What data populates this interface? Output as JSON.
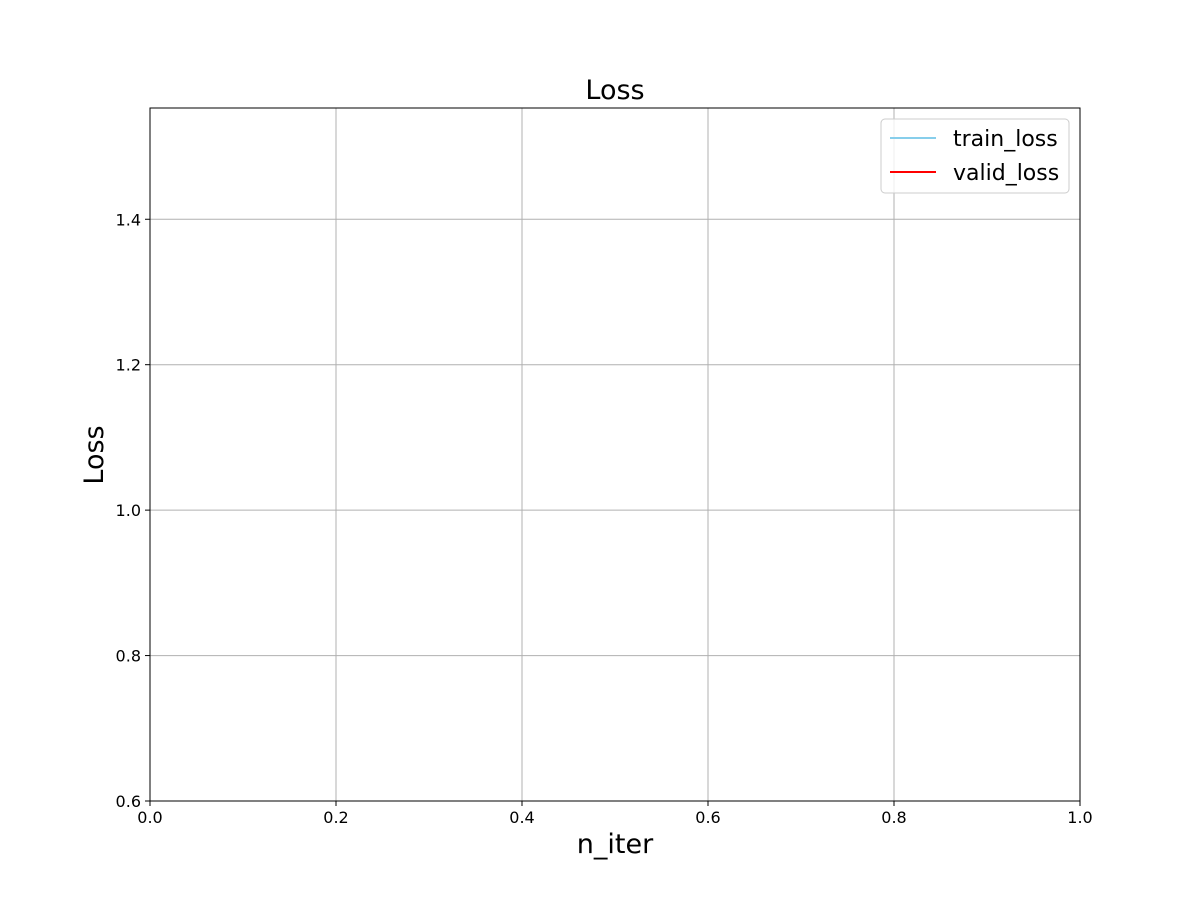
{
  "chart_data": {
    "type": "line",
    "title": "Loss",
    "xlabel": "n_iter",
    "ylabel": "Loss",
    "xlim": [
      0.0,
      1.0
    ],
    "ylim": [
      0.6,
      1.553
    ],
    "xticks": [
      0.0,
      0.2,
      0.4,
      0.6,
      0.8,
      1.0
    ],
    "xtick_labels": [
      "0.0",
      "0.2",
      "0.4",
      "0.6",
      "0.8",
      "1.0"
    ],
    "yticks": [
      0.6,
      0.8,
      1.0,
      1.2,
      1.4
    ],
    "ytick_labels": [
      "0.6",
      "0.8",
      "1.0",
      "1.2",
      "1.4"
    ],
    "grid": true,
    "legend_position": "top-right",
    "series": [
      {
        "name": "train_loss",
        "color": "#87ceeb",
        "x": [],
        "y": []
      },
      {
        "name": "valid_loss",
        "color": "#ff0000",
        "x": [],
        "y": []
      }
    ]
  }
}
